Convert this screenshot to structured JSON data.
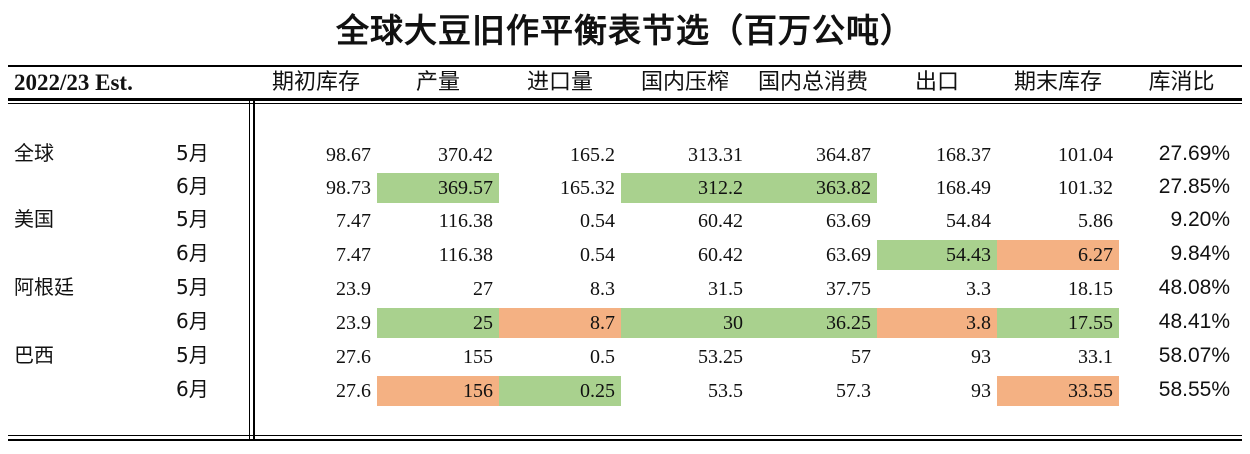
{
  "title": "全球大豆旧作平衡表节选（百万公吨）",
  "header": {
    "year_label": "2022/23 Est.",
    "columns": [
      "期初库存",
      "产量",
      "进口量",
      "国内压榨",
      "国内总消费",
      "出口",
      "期末库存",
      "库消比"
    ]
  },
  "colors": {
    "highlight_green": "#a9d18e",
    "highlight_orange": "#f4b183"
  },
  "rows": [
    {
      "region": "全球",
      "month": "5月",
      "values": [
        "98.67",
        "370.42",
        "165.2",
        "313.31",
        "364.87",
        "168.37",
        "101.04"
      ],
      "highlights": [
        "",
        "",
        "",
        "",
        "",
        "",
        ""
      ],
      "ratio": "27.69%"
    },
    {
      "region": "",
      "month": "6月",
      "values": [
        "98.73",
        "369.57",
        "165.32",
        "312.2",
        "363.82",
        "168.49",
        "101.32"
      ],
      "highlights": [
        "",
        "green",
        "",
        "green",
        "green",
        "",
        ""
      ],
      "ratio": "27.85%"
    },
    {
      "region": "美国",
      "month": "5月",
      "values": [
        "7.47",
        "116.38",
        "0.54",
        "60.42",
        "63.69",
        "54.84",
        "5.86"
      ],
      "highlights": [
        "",
        "",
        "",
        "",
        "",
        "",
        ""
      ],
      "ratio": "9.20%"
    },
    {
      "region": "",
      "month": "6月",
      "values": [
        "7.47",
        "116.38",
        "0.54",
        "60.42",
        "63.69",
        "54.43",
        "6.27"
      ],
      "highlights": [
        "",
        "",
        "",
        "",
        "",
        "green",
        "orange"
      ],
      "ratio": "9.84%"
    },
    {
      "region": "阿根廷",
      "month": "5月",
      "values": [
        "23.9",
        "27",
        "8.3",
        "31.5",
        "37.75",
        "3.3",
        "18.15"
      ],
      "highlights": [
        "",
        "",
        "",
        "",
        "",
        "",
        ""
      ],
      "ratio": "48.08%"
    },
    {
      "region": "",
      "month": "6月",
      "values": [
        "23.9",
        "25",
        "8.7",
        "30",
        "36.25",
        "3.8",
        "17.55"
      ],
      "highlights": [
        "",
        "green",
        "orange",
        "green",
        "green",
        "orange",
        "green"
      ],
      "ratio": "48.41%"
    },
    {
      "region": "巴西",
      "month": "5月",
      "values": [
        "27.6",
        "155",
        "0.5",
        "53.25",
        "57",
        "93",
        "33.1"
      ],
      "highlights": [
        "",
        "",
        "",
        "",
        "",
        "",
        ""
      ],
      "ratio": "58.07%"
    },
    {
      "region": "",
      "month": "6月",
      "values": [
        "27.6",
        "156",
        "0.25",
        "53.5",
        "57.3",
        "93",
        "33.55"
      ],
      "highlights": [
        "",
        "orange",
        "green",
        "",
        "",
        "",
        "orange"
      ],
      "ratio": "58.55%"
    }
  ]
}
